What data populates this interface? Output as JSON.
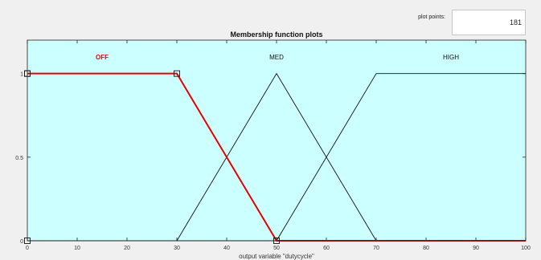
{
  "plot_points": {
    "label": "plot points:",
    "value": "181"
  },
  "chart_data": {
    "type": "line",
    "title": "Membership function plots",
    "xlabel": "output variable \"dutycycle\"",
    "ylabel": "",
    "xlim": [
      0,
      100
    ],
    "ylim": [
      0,
      1.2
    ],
    "x_ticks": [
      0,
      10,
      20,
      30,
      40,
      50,
      60,
      70,
      80,
      90,
      100
    ],
    "y_ticks": [
      {
        "value": 0,
        "label": "0"
      },
      {
        "value": 0.5,
        "label": "0.5"
      },
      {
        "value": 1,
        "label": "1"
      }
    ],
    "grid": false,
    "background": "#ccffff",
    "selected_color": "#e80000",
    "default_color": "#111111",
    "series": [
      {
        "name": "OFF",
        "selected": true,
        "label_x": 15,
        "points": [
          [
            0,
            1
          ],
          [
            30,
            1
          ],
          [
            50,
            0
          ],
          [
            100,
            0
          ]
        ],
        "handles": [
          [
            0,
            1
          ],
          [
            30,
            1
          ],
          [
            50,
            0
          ]
        ]
      },
      {
        "name": "MED",
        "selected": false,
        "label_x": 50,
        "points": [
          [
            0,
            0
          ],
          [
            30,
            0
          ],
          [
            50,
            1
          ],
          [
            70,
            0
          ],
          [
            100,
            0
          ]
        ]
      },
      {
        "name": "HIGH",
        "selected": false,
        "label_x": 85,
        "points": [
          [
            0,
            0
          ],
          [
            50,
            0
          ],
          [
            70,
            1
          ],
          [
            100,
            1
          ]
        ]
      }
    ],
    "y_handles": [
      1,
      0
    ]
  }
}
